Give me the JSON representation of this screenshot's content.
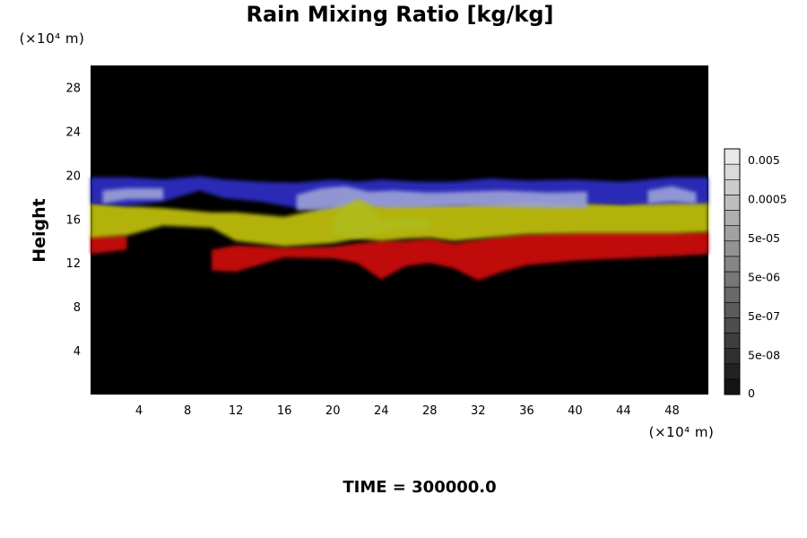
{
  "chart_data": {
    "type": "heatmap",
    "title": "Rain Mixing Ratio [kg/kg]",
    "ylabel": "Height",
    "xlabel": "",
    "x_unit": "(×10⁴ m)",
    "y_unit": "(×10⁴ m)",
    "xlim": [
      0,
      51
    ],
    "ylim": [
      0,
      30
    ],
    "xticks": [
      4,
      8,
      12,
      16,
      20,
      24,
      28,
      32,
      36,
      40,
      44,
      48
    ],
    "yticks": [
      4,
      8,
      12,
      16,
      20,
      24,
      28
    ],
    "background_color": "#000000",
    "bands": [
      {
        "color": "#d10f0f",
        "x": [
          0,
          3,
          5,
          10,
          12,
          16,
          20,
          22,
          24,
          26,
          28,
          30,
          32,
          34,
          36,
          40,
          44,
          48,
          51
        ],
        "top": [
          14.5,
          14.5,
          0,
          13.2,
          13.6,
          13.4,
          13.5,
          13.8,
          14.0,
          14.0,
          14.2,
          13.8,
          14.1,
          14.4,
          14.6,
          14.8,
          14.8,
          14.8,
          14.8
        ],
        "bottom": [
          12.8,
          13.2,
          0,
          11.3,
          11.2,
          12.5,
          12.4,
          12.0,
          10.5,
          11.7,
          12.0,
          11.5,
          10.4,
          11.2,
          11.8,
          12.2,
          12.4,
          12.6,
          12.8
        ]
      },
      {
        "color": "#c2c20f",
        "x": [
          0,
          3,
          6,
          10,
          12,
          16,
          20,
          22,
          24,
          26,
          28,
          30,
          32,
          34,
          36,
          40,
          44,
          48,
          51
        ],
        "top": [
          17.5,
          17.2,
          17.0,
          16.6,
          16.6,
          16.2,
          17.2,
          18.2,
          17.5,
          17.6,
          17.6,
          17.4,
          17.6,
          17.6,
          17.8,
          17.6,
          17.4,
          17.8,
          17.6
        ],
        "bottom": [
          14.3,
          14.5,
          15.4,
          15.2,
          14.0,
          13.5,
          13.8,
          14.2,
          14.0,
          14.2,
          14.3,
          14.0,
          14.2,
          14.4,
          14.6,
          14.7,
          14.7,
          14.7,
          14.8
        ]
      },
      {
        "color": "#2e2ec6",
        "x": [
          0,
          3,
          6,
          9,
          11,
          14,
          17,
          20,
          22,
          24,
          27,
          30,
          33,
          36,
          40,
          44,
          48,
          51
        ],
        "top": [
          19.8,
          19.8,
          19.6,
          19.9,
          19.6,
          19.4,
          19.3,
          19.6,
          19.4,
          19.6,
          19.4,
          19.4,
          19.7,
          19.5,
          19.6,
          19.4,
          19.8,
          19.8
        ],
        "bottom": [
          17.4,
          17.2,
          17.6,
          18.6,
          17.9,
          17.6,
          17.0,
          17.4,
          17.6,
          17.3,
          17.3,
          17.3,
          17.4,
          17.6,
          17.4,
          17.3,
          17.4,
          17.4
        ]
      },
      {
        "color": "#9aa0d6",
        "x": [
          1,
          3,
          6,
          7,
          17,
          19,
          21,
          23,
          25,
          28,
          31,
          34,
          38,
          41,
          44,
          46,
          48,
          50
        ],
        "top": [
          18.6,
          18.8,
          18.8,
          0,
          18.2,
          18.8,
          19.0,
          18.5,
          18.6,
          18.4,
          18.5,
          18.6,
          18.4,
          18.5,
          0,
          18.6,
          19.0,
          18.4
        ],
        "bottom": [
          17.4,
          17.8,
          17.8,
          0,
          16.8,
          16.8,
          17.1,
          17.2,
          17.0,
          17.1,
          17.2,
          17.1,
          17.0,
          17.0,
          0,
          17.4,
          17.6,
          17.4
        ]
      },
      {
        "color": "#aebc1c",
        "x": [
          20,
          21,
          22,
          23,
          24,
          26,
          28
        ],
        "top": [
          16.0,
          17.2,
          17.8,
          17.4,
          16.0,
          16.2,
          16.0
        ],
        "bottom": [
          14.6,
          14.4,
          14.2,
          14.6,
          14.8,
          15.0,
          15.0
        ]
      }
    ],
    "colorbar": {
      "tick_labels": [
        "0.005",
        "0.0005",
        "5e-05",
        "5e-06",
        "5e-07",
        "5e-08",
        "0"
      ],
      "levels": 16
    }
  },
  "footer": {
    "time_label": "TIME = 300000.0"
  }
}
